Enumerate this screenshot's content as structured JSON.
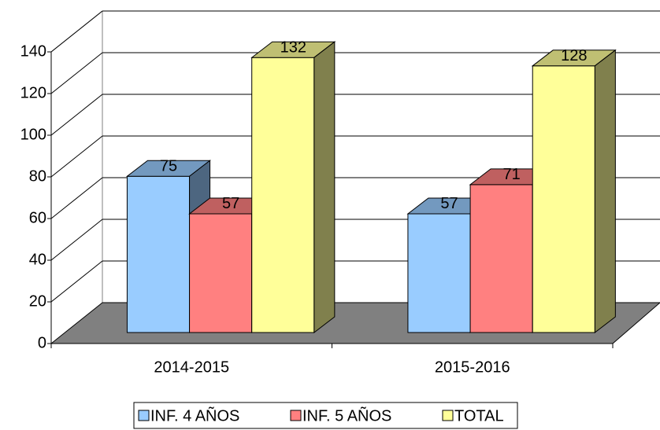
{
  "chart_data": {
    "type": "bar3d",
    "categories": [
      "2014-2015",
      "2015-2016"
    ],
    "series": [
      {
        "name": "INF. 4 AÑOS",
        "color": "#99ccff",
        "values": [
          75,
          57
        ]
      },
      {
        "name": "INF. 5 AÑOS",
        "color": "#ff8080",
        "values": [
          57,
          71
        ]
      },
      {
        "name": "TOTAL",
        "color": "#ffff99",
        "values": [
          132,
          128
        ]
      }
    ],
    "ylim": [
      0,
      140
    ],
    "yticks": [
      0,
      20,
      40,
      60,
      80,
      100,
      120,
      140
    ],
    "grid": true,
    "legend": "bottom"
  }
}
